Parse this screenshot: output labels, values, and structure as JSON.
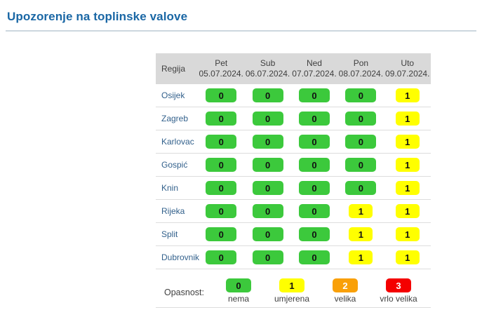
{
  "title": "Upozorenje na toplinske valove",
  "accent_color": "#1a67a5",
  "table": {
    "region_header": "Regija",
    "header_bg": "#d9d9d9",
    "columns": [
      {
        "day": "Pet",
        "date": "05.07.2024."
      },
      {
        "day": "Sub",
        "date": "06.07.2024."
      },
      {
        "day": "Ned",
        "date": "07.07.2024."
      },
      {
        "day": "Pon",
        "date": "08.07.2024."
      },
      {
        "day": "Uto",
        "date": "09.07.2024."
      }
    ],
    "rows": [
      {
        "region": "Osijek",
        "values": [
          0,
          0,
          0,
          0,
          1
        ]
      },
      {
        "region": "Zagreb",
        "values": [
          0,
          0,
          0,
          0,
          1
        ]
      },
      {
        "region": "Karlovac",
        "values": [
          0,
          0,
          0,
          0,
          1
        ]
      },
      {
        "region": "Gospić",
        "values": [
          0,
          0,
          0,
          0,
          1
        ]
      },
      {
        "region": "Knin",
        "values": [
          0,
          0,
          0,
          0,
          1
        ]
      },
      {
        "region": "Rijeka",
        "values": [
          0,
          0,
          0,
          1,
          1
        ]
      },
      {
        "region": "Split",
        "values": [
          0,
          0,
          0,
          1,
          1
        ]
      },
      {
        "region": "Dubrovnik",
        "values": [
          0,
          0,
          0,
          1,
          1
        ]
      }
    ]
  },
  "legend": {
    "label": "Opasnost:",
    "items": [
      {
        "value": 0,
        "label": "nema"
      },
      {
        "value": 1,
        "label": "umjerena"
      },
      {
        "value": 2,
        "label": "velika"
      },
      {
        "value": 3,
        "label": "vrlo velika"
      }
    ]
  },
  "warning_colors": {
    "0": {
      "bg": "#3cc93c",
      "text": "#111111"
    },
    "1": {
      "bg": "#ffff00",
      "text": "#111111"
    },
    "2": {
      "bg": "#f9a008",
      "text": "#ffffff"
    },
    "3": {
      "bg": "#f40000",
      "text": "#ffffff"
    }
  }
}
